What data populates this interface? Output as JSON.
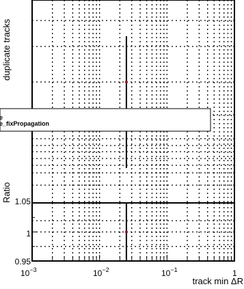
{
  "chart_data": [
    {
      "type": "scatter",
      "panel": "top",
      "ylabel": "duplicate tracks",
      "x_scale": "log",
      "xlim": [
        0.001,
        1
      ],
      "grid": true,
      "series": [
        {
          "x": [
            0.025
          ],
          "y": [
            0.0
          ],
          "yerr_low": [
            0.0
          ],
          "yerr_high": [
            0.0
          ]
        }
      ],
      "legend": {
        "placement": "center-left",
        "entries": [
          "e",
          "e_fixPropagation"
        ]
      }
    },
    {
      "type": "scatter",
      "panel": "ratio",
      "ylabel": "Ratio",
      "xlabel": "track min ΔR",
      "x_scale": "log",
      "xlim": [
        0.001,
        1
      ],
      "ylim": [
        0.95,
        1.05
      ],
      "grid": true,
      "x_ticks": [
        "10",
        "10",
        "10",
        "1"
      ],
      "x_tick_exponents": [
        "−3",
        "−2",
        "−1",
        ""
      ],
      "y_ticks": [
        "0.95",
        "1",
        "1.05"
      ],
      "series": [
        {
          "x": [
            0.025
          ],
          "y": [
            1.0
          ]
        }
      ]
    }
  ]
}
